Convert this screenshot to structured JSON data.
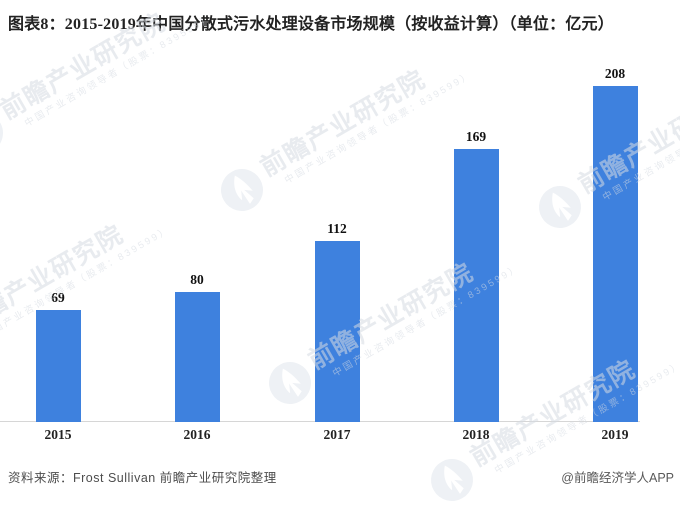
{
  "title": "图表8：2015-2019年中国分散式污水处理设备市场规模（按收益计算）（单位：亿元）",
  "chart_data": {
    "type": "bar",
    "title": "2015-2019年中国分散式污水处理设备市场规模（按收益计算）",
    "unit": "亿元",
    "categories": [
      "2015",
      "2016",
      "2017",
      "2018",
      "2019"
    ],
    "values": [
      69,
      80,
      112,
      169,
      208
    ],
    "xlabel": "",
    "ylabel": "",
    "ylim": [
      0,
      230
    ],
    "grid": false,
    "y_axis_visible": false,
    "value_labels_shown": true,
    "legend_position": "none",
    "bar_color": "#3e81de"
  },
  "footer": {
    "source": "资料来源：Frost Sullivan 前瞻产业研究院整理",
    "credit": "@前瞻经济学人APP"
  },
  "watermark": {
    "logo": "qianzhan-circle-logo",
    "brand": "前瞻产业研究院",
    "tagline": "中国产业咨询领导者（股票：839599）"
  },
  "colors": {
    "bar": "#3e81de",
    "axis_line": "#d6d6d6",
    "title_text": "#222222",
    "value_label_text": "#111111",
    "category_label_text": "#222222",
    "source_text": "#4d4d4d",
    "credit_text": "#595959",
    "background": "#ffffff",
    "watermark_logo": "#eef1f5"
  }
}
